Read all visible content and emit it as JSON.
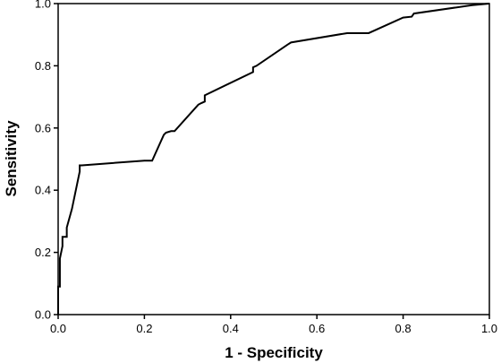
{
  "chart_data": {
    "type": "line",
    "title": "",
    "xlabel": "1 - Specificity",
    "ylabel": "Sensitivity",
    "xlim": [
      0,
      1
    ],
    "ylim": [
      0,
      1
    ],
    "x_ticks": [
      "0.0",
      "0.2",
      "0.4",
      "0.6",
      "0.8",
      "1.0"
    ],
    "y_ticks": [
      "0.0",
      "0.2",
      "0.4",
      "0.6",
      "0.8",
      "1.0"
    ],
    "grid": false,
    "legend": "none",
    "line_color": "#000000",
    "series": [
      {
        "x": [
          0.0,
          0.0,
          0.004,
          0.004,
          0.01,
          0.01,
          0.02,
          0.02,
          0.032,
          0.05,
          0.05,
          0.055,
          0.2,
          0.218,
          0.245,
          0.25,
          0.262,
          0.27,
          0.325,
          0.332,
          0.34,
          0.34,
          0.452,
          0.452,
          0.46,
          0.532,
          0.54,
          0.67,
          0.72,
          0.8,
          0.82,
          0.825,
          0.96,
          1.0
        ],
        "y": [
          0.0,
          0.09,
          0.09,
          0.18,
          0.22,
          0.25,
          0.25,
          0.28,
          0.34,
          0.46,
          0.48,
          0.48,
          0.495,
          0.495,
          0.578,
          0.585,
          0.59,
          0.59,
          0.675,
          0.68,
          0.685,
          0.705,
          0.78,
          0.795,
          0.8,
          0.868,
          0.875,
          0.905,
          0.905,
          0.955,
          0.958,
          0.968,
          0.995,
          1.0
        ]
      }
    ]
  }
}
